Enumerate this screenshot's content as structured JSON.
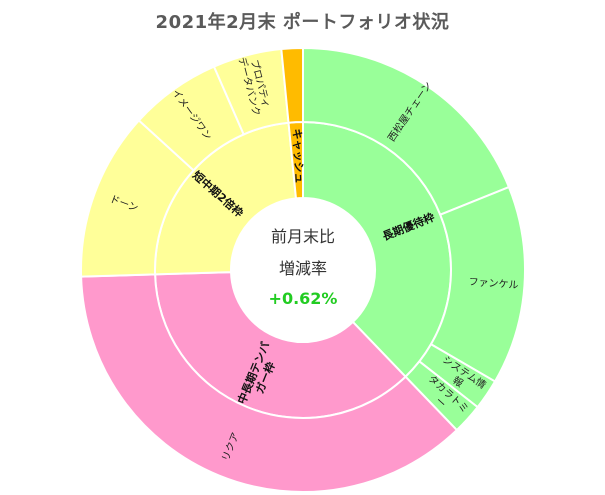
{
  "chart_data": {
    "type": "sunburst",
    "title": "2021年2月末 ポートフォリオ状況",
    "center": {
      "line1": "前月末比",
      "line2": "増減率",
      "value": "+0.62%"
    },
    "colors": {
      "long_term": "#99ff99",
      "mid_term": "#ff99cc",
      "short_term": "#ffff99",
      "cash": "#ffbb00",
      "value_text": "#22cc22"
    },
    "groups": [
      {
        "name": "長期優待枠",
        "color_key": "long_term",
        "children": [
          {
            "name": "西松屋チェーン",
            "value": 17.0
          },
          {
            "name": "ファンケル",
            "value": 13.0
          },
          {
            "name": "システム情報",
            "value": 2.0
          },
          {
            "name": "タカラトミー",
            "value": 2.0
          }
        ]
      },
      {
        "name": "中長期テンバガー枠",
        "color_key": "mid_term",
        "children": [
          {
            "name": "リクア",
            "value": 33.0
          }
        ]
      },
      {
        "name": "短中期2倍枠",
        "color_key": "short_term",
        "children": [
          {
            "name": "ドーン",
            "value": 11.0
          },
          {
            "name": "イメージワン",
            "value": 6.0
          },
          {
            "name": "プロパティデータバンク",
            "value": 4.5
          }
        ]
      },
      {
        "name": "キャッシュ",
        "color_key": "cash",
        "children": [
          {
            "name": "",
            "value": 1.4
          }
        ]
      }
    ]
  }
}
